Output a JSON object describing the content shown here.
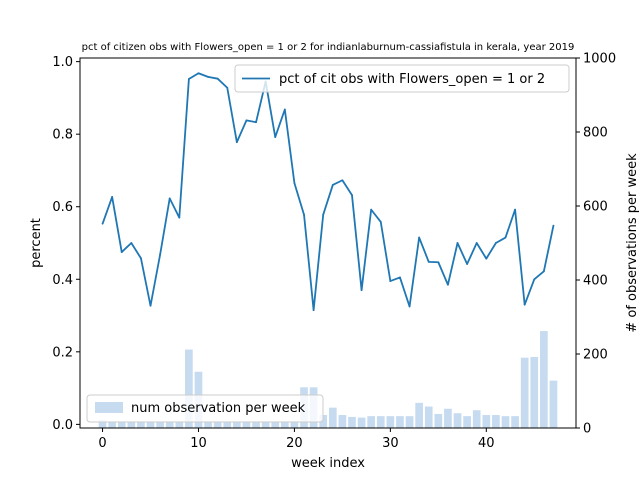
{
  "chart_data": {
    "type": "bar+line",
    "title": "pct of citizen obs with Flowers_open = 1 or 2 for indianlaburnum-cassiafistula in kerala, year 2019",
    "xlabel": "week index",
    "ylabel_left": "percent",
    "ylabel_right": "# of observations per week",
    "xlim": [
      -2.35,
      49.35
    ],
    "ylim_left": [
      -0.01,
      1.01
    ],
    "ylim_right": [
      0,
      1000
    ],
    "x_ticks": [
      0,
      10,
      20,
      30,
      40
    ],
    "y_left_ticks": [
      0.0,
      0.2,
      0.4,
      0.6,
      0.8,
      1.0
    ],
    "y_right_ticks": [
      0,
      200,
      400,
      600,
      800,
      1000
    ],
    "legend_line_position": "upper-right",
    "legend_bar_position": "lower-left",
    "line_color": "#1f77b4",
    "bar_color": "#c6dbef",
    "series": [
      {
        "name": "pct of cit obs with Flowers_open = 1 or 2",
        "kind": "line",
        "axis": "left",
        "x": [
          0,
          1,
          2,
          3,
          4,
          5,
          6,
          7,
          8,
          9,
          10,
          11,
          12,
          13,
          14,
          15,
          16,
          17,
          18,
          19,
          20,
          21,
          22,
          23,
          24,
          25,
          26,
          27,
          28,
          29,
          30,
          31,
          32,
          33,
          34,
          35,
          36,
          37,
          38,
          39,
          40,
          41,
          42,
          43,
          44,
          45,
          46,
          47
        ],
        "values": [
          0.553,
          0.627,
          0.475,
          0.5,
          0.458,
          0.327,
          0.468,
          0.623,
          0.57,
          0.952,
          0.968,
          0.958,
          0.953,
          0.928,
          0.778,
          0.838,
          0.833,
          0.945,
          0.792,
          0.868,
          0.665,
          0.578,
          0.315,
          0.578,
          0.66,
          0.673,
          0.632,
          0.37,
          0.592,
          0.558,
          0.395,
          0.405,
          0.325,
          0.515,
          0.448,
          0.447,
          0.385,
          0.5,
          0.442,
          0.5,
          0.457,
          0.5,
          0.515,
          0.592,
          0.33,
          0.4,
          0.422,
          0.548
        ]
      },
      {
        "name": "num observation per week",
        "kind": "bar",
        "axis": "right",
        "x": [
          0,
          1,
          2,
          3,
          4,
          5,
          6,
          7,
          8,
          9,
          10,
          11,
          12,
          13,
          14,
          15,
          16,
          17,
          18,
          19,
          20,
          21,
          22,
          23,
          24,
          25,
          26,
          27,
          28,
          29,
          30,
          31,
          32,
          33,
          34,
          35,
          36,
          37,
          38,
          39,
          40,
          41,
          42,
          43,
          44,
          45,
          46,
          47
        ],
        "values": [
          22,
          18,
          18,
          18,
          18,
          18,
          18,
          18,
          18,
          212,
          152,
          18,
          18,
          18,
          18,
          18,
          18,
          18,
          18,
          18,
          18,
          110,
          110,
          35,
          55,
          35,
          30,
          28,
          32,
          32,
          32,
          32,
          32,
          68,
          58,
          38,
          52,
          40,
          32,
          48,
          35,
          35,
          32,
          32,
          190,
          192,
          262,
          128
        ]
      }
    ]
  }
}
